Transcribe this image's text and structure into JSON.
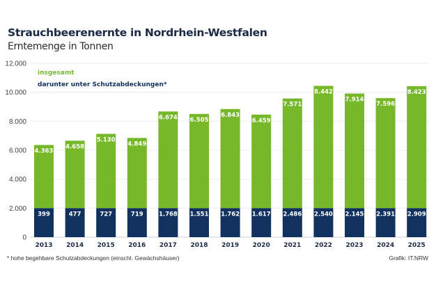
{
  "chart_data": {
    "type": "bar",
    "title": "Strauchbeerenernte in Nordrhein-Westfalen",
    "subtitle": "Erntemenge in Tonnen",
    "xlabel": "",
    "ylabel": "",
    "ylim": [
      0,
      12000
    ],
    "yticks": [
      0,
      2000,
      4000,
      6000,
      8000,
      10000,
      12000
    ],
    "ytick_labels": [
      "0",
      "2.000",
      "4.000",
      "6.000",
      "8.000",
      "10.000",
      "12.000"
    ],
    "grid": true,
    "legend_position": "top-left",
    "note": "Covered-share values are shown in a fixed band from 0 to 2.000 at the bottom; total bars are drawn above it",
    "categories": [
      "2013",
      "2014",
      "2015",
      "2016",
      "2017",
      "2018",
      "2019",
      "2020",
      "2021",
      "2022",
      "2023",
      "2024",
      "2025"
    ],
    "series": [
      {
        "name": "insgesamt",
        "color": "#76b82a",
        "values": [
          4363,
          4658,
          5130,
          4849,
          6674,
          6505,
          6843,
          6459,
          7571,
          8442,
          7914,
          7596,
          8423
        ],
        "labels": [
          "4.363",
          "4.658",
          "5.130",
          "4.849",
          "6.674",
          "6.505",
          "6.843",
          "6.459",
          "7.571",
          "8.442",
          "7.914",
          "7.596",
          "8.423"
        ]
      },
      {
        "name": "darunter unter Schutzabdeckungen*",
        "color": "#11325f",
        "values": [
          399,
          477,
          727,
          719,
          1768,
          1551,
          1762,
          1617,
          2486,
          2540,
          2145,
          2391,
          2909
        ],
        "labels": [
          "399",
          "477",
          "727",
          "719",
          "1.768",
          "1.551",
          "1.762",
          "1.617",
          "2.486",
          "2.540",
          "2.145",
          "2.391",
          "2.909"
        ]
      }
    ],
    "band_value": 2000
  },
  "footnote": "*  hohe begehbare Schutzabdeckungen (einschl. Gewächshäuser)",
  "source": "Grafik: IT.NRW"
}
